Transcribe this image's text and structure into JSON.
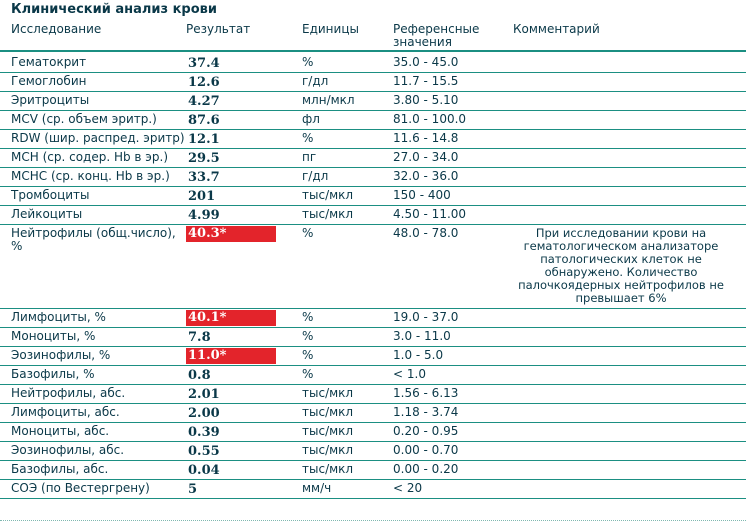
{
  "title": "Клинический анализ крови",
  "headers": {
    "test": "Исследование",
    "result": "Результат",
    "units": "Единицы",
    "reference": "Референсные\nзначения",
    "comment": "Комментарий"
  },
  "rows": [
    {
      "name": "Гематокрит",
      "result": "37.4",
      "unit": "%",
      "ref": "35.0 - 45.0",
      "flag": false,
      "comment": ""
    },
    {
      "name": "Гемоглобин",
      "result": "12.6",
      "unit": "г/дл",
      "ref": "11.7 - 15.5",
      "flag": false,
      "comment": ""
    },
    {
      "name": "Эритроциты",
      "result": "4.27",
      "unit": "млн/мкл",
      "ref": "3.80 - 5.10",
      "flag": false,
      "comment": ""
    },
    {
      "name": "MCV (ср. объем эритр.)",
      "result": "87.6",
      "unit": "фл",
      "ref": "81.0 - 100.0",
      "flag": false,
      "comment": ""
    },
    {
      "name": "RDW (шир. распред. эритр)",
      "result": "12.1",
      "unit": "%",
      "ref": "11.6 - 14.8",
      "flag": false,
      "comment": ""
    },
    {
      "name": "MCH (ср. содер. Hb в эр.)",
      "result": "29.5",
      "unit": "пг",
      "ref": "27.0 - 34.0",
      "flag": false,
      "comment": ""
    },
    {
      "name": "MCHC (ср. конц. Hb в эр.)",
      "result": "33.7",
      "unit": "г/дл",
      "ref": "32.0 - 36.0",
      "flag": false,
      "comment": ""
    },
    {
      "name": "Тромбоциты",
      "result": "201",
      "unit": "тыс/мкл",
      "ref": "150 - 400",
      "flag": false,
      "comment": ""
    },
    {
      "name": "Лейкоциты",
      "result": "4.99",
      "unit": "тыс/мкл",
      "ref": "4.50 - 11.00",
      "flag": false,
      "comment": ""
    },
    {
      "name": "Нейтрофилы (общ.число),\n%",
      "result": "40.3*",
      "unit": "%",
      "ref": "48.0 - 78.0",
      "flag": true,
      "comment": "При исследовании крови на гематологическом анализаторе патологических клеток не обнаружено. Количество палочкоядерных нейтрофилов не превышает 6%"
    },
    {
      "name": "Лимфоциты, %",
      "result": "40.1*",
      "unit": "%",
      "ref": "19.0 - 37.0",
      "flag": true,
      "comment": ""
    },
    {
      "name": "Моноциты, %",
      "result": "7.8",
      "unit": "%",
      "ref": "3.0 - 11.0",
      "flag": false,
      "comment": ""
    },
    {
      "name": "Эозинофилы, %",
      "result": "11.0*",
      "unit": "%",
      "ref": "1.0 - 5.0",
      "flag": true,
      "comment": ""
    },
    {
      "name": "Базофилы, %",
      "result": "0.8",
      "unit": "%",
      "ref": "< 1.0",
      "flag": false,
      "comment": ""
    },
    {
      "name": "Нейтрофилы, абс.",
      "result": "2.01",
      "unit": "тыс/мкл",
      "ref": "1.56 - 6.13",
      "flag": false,
      "comment": ""
    },
    {
      "name": "Лимфоциты, абс.",
      "result": "2.00",
      "unit": "тыс/мкл",
      "ref": "1.18 - 3.74",
      "flag": false,
      "comment": ""
    },
    {
      "name": "Моноциты, абс.",
      "result": "0.39",
      "unit": "тыс/мкл",
      "ref": "0.20 - 0.95",
      "flag": false,
      "comment": ""
    },
    {
      "name": "Эозинофилы, абс.",
      "result": "0.55",
      "unit": "тыс/мкл",
      "ref": "0.00 - 0.70",
      "flag": false,
      "comment": ""
    },
    {
      "name": "Базофилы, абс.",
      "result": "0.04",
      "unit": "тыс/мкл",
      "ref": "0.00 - 0.20",
      "flag": false,
      "comment": ""
    },
    {
      "name": "СОЭ (по Вестергрену)",
      "result": "5",
      "unit": "мм/ч",
      "ref": "< 20",
      "flag": false,
      "comment": ""
    }
  ],
  "colors": {
    "text": "#0a3848",
    "line": "#1b8f82",
    "flag_bg": "#e3242b",
    "flag_text": "#ffffff"
  }
}
